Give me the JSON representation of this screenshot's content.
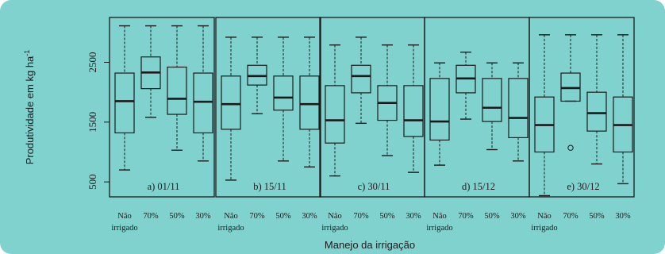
{
  "colors": {
    "background": "#80d2cf",
    "ink": "#1a1a1a",
    "page": "#ffffff"
  },
  "chart_data": {
    "type": "boxplot",
    "title": "",
    "ylabel": "Produtividade em kg ha-1",
    "xlabel": "Manejo da irrigação",
    "ylim": [
      250,
      3250
    ],
    "yticks": [
      500,
      1500,
      2500
    ],
    "ytick_labels": [
      "500",
      "1500",
      "2500"
    ],
    "categories": [
      {
        "label_line1": "Não",
        "label_line2": "irrigado"
      },
      {
        "label_line1": "70%",
        "label_line2": ""
      },
      {
        "label_line1": "50%",
        "label_line2": ""
      },
      {
        "label_line1": "30%",
        "label_line2": ""
      }
    ],
    "panels": [
      {
        "label": "a) 01/11",
        "boxes": [
          {
            "min": 700,
            "q1": 1320,
            "median": 1850,
            "q3": 2320,
            "max": 3110
          },
          {
            "min": 1580,
            "q1": 2060,
            "median": 2330,
            "q3": 2590,
            "max": 3110
          },
          {
            "min": 1030,
            "q1": 1630,
            "median": 1890,
            "q3": 2420,
            "max": 3110
          },
          {
            "min": 850,
            "q1": 1320,
            "median": 1840,
            "q3": 2320,
            "max": 3110
          }
        ]
      },
      {
        "label": "b) 15/11",
        "boxes": [
          {
            "min": 530,
            "q1": 1380,
            "median": 1800,
            "q3": 2270,
            "max": 2920
          },
          {
            "min": 1640,
            "q1": 2120,
            "median": 2270,
            "q3": 2450,
            "max": 2920
          },
          {
            "min": 850,
            "q1": 1700,
            "median": 1910,
            "q3": 2270,
            "max": 2920
          },
          {
            "min": 750,
            "q1": 1380,
            "median": 1800,
            "q3": 2270,
            "max": 2920
          }
        ]
      },
      {
        "label": "c) 30/11",
        "boxes": [
          {
            "min": 600,
            "q1": 1150,
            "median": 1530,
            "q3": 2110,
            "max": 2790
          },
          {
            "min": 1480,
            "q1": 1990,
            "median": 2270,
            "q3": 2450,
            "max": 2920
          },
          {
            "min": 940,
            "q1": 1530,
            "median": 1820,
            "q3": 2110,
            "max": 2790
          },
          {
            "min": 660,
            "q1": 1260,
            "median": 1530,
            "q3": 2110,
            "max": 2790
          }
        ]
      },
      {
        "label": "d) 15/12",
        "boxes": [
          {
            "min": 780,
            "q1": 1200,
            "median": 1510,
            "q3": 2230,
            "max": 2490
          },
          {
            "min": 1550,
            "q1": 1990,
            "median": 2230,
            "q3": 2450,
            "max": 2670
          },
          {
            "min": 1040,
            "q1": 1510,
            "median": 1740,
            "q3": 2230,
            "max": 2490
          },
          {
            "min": 850,
            "q1": 1240,
            "median": 1570,
            "q3": 2230,
            "max": 2490
          }
        ]
      },
      {
        "label": "e) 30/12",
        "boxes": [
          {
            "min": 270,
            "q1": 1000,
            "median": 1450,
            "q3": 1920,
            "max": 2960
          },
          {
            "min": 1850,
            "q1": 1850,
            "median": 2070,
            "q3": 2320,
            "max": 2960,
            "outliers": [
              1070
            ]
          },
          {
            "min": 800,
            "q1": 1350,
            "median": 1650,
            "q3": 2000,
            "max": 2960
          },
          {
            "min": 470,
            "q1": 1000,
            "median": 1450,
            "q3": 1920,
            "max": 2960
          }
        ]
      }
    ]
  }
}
